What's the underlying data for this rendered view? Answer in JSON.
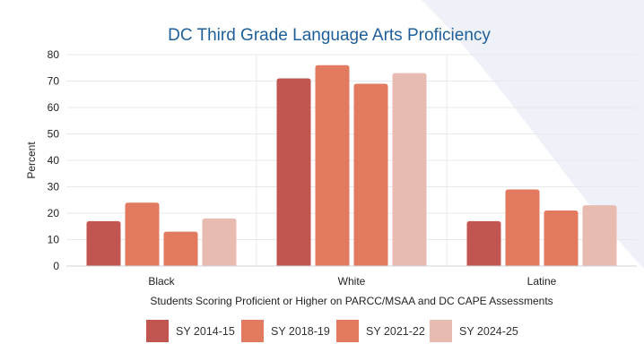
{
  "chart_data": {
    "type": "bar",
    "title": "DC Third Grade Language Arts Proficiency",
    "xlabel": "Students Scoring Proficient or Higher on PARCC/MSAA and DC CAPE Assessments",
    "ylabel": "Percent",
    "categories": [
      "Black",
      "White",
      "Latine"
    ],
    "ylim": [
      0,
      80
    ],
    "yticks": [
      0,
      10,
      20,
      30,
      40,
      50,
      60,
      70,
      80
    ],
    "grid": true,
    "legend_position": "bottom",
    "series": [
      {
        "name": "SY 2014-15",
        "values": [
          17,
          71,
          17
        ],
        "color": "#c0564f"
      },
      {
        "name": "SY 2018-19",
        "values": [
          24,
          76,
          29
        ],
        "color": "#e27a5f"
      },
      {
        "name": "SY 2021-22",
        "values": [
          13,
          69,
          21
        ],
        "color": "#e27a5f"
      },
      {
        "name": "SY 2024-25",
        "values": [
          18,
          73,
          23
        ],
        "color": "#e8bbb1"
      }
    ]
  }
}
